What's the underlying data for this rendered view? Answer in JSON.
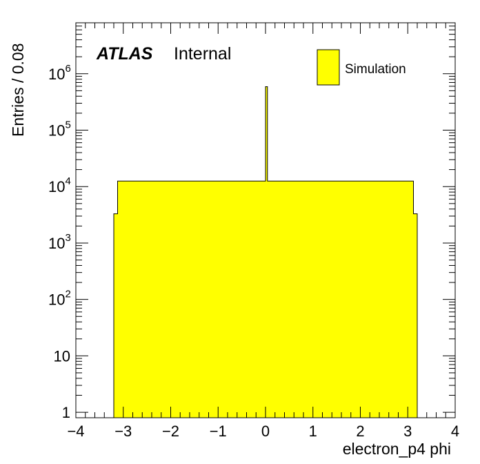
{
  "chart_data": {
    "type": "bar",
    "histogram": true,
    "xlabel": "electron_p4 phi",
    "ylabel": "Entries / 0.08",
    "xlim": [
      -4,
      4
    ],
    "ylim": [
      0.8,
      8000000
    ],
    "yscale": "log",
    "bin_width": 0.08,
    "x_ticks": [
      -4,
      -3,
      -2,
      -1,
      0,
      1,
      2,
      3,
      4
    ],
    "x_tick_labels": [
      "−4",
      "−3",
      "−2",
      "−1",
      "0",
      "1",
      "2",
      "3",
      "4"
    ],
    "y_ticks": [
      {
        "value": 1,
        "base": "1",
        "exp": ""
      },
      {
        "value": 10,
        "base": "10",
        "exp": ""
      },
      {
        "value": 100,
        "base": "10",
        "exp": "2"
      },
      {
        "value": 1000,
        "base": "10",
        "exp": "3"
      },
      {
        "value": 10000,
        "base": "10",
        "exp": "4"
      },
      {
        "value": 100000,
        "base": "10",
        "exp": "5"
      },
      {
        "value": 1000000,
        "base": "10",
        "exp": "6"
      }
    ],
    "annotation": {
      "bold": "ATLAS",
      "text": "Internal"
    },
    "legend": {
      "position": "top-right",
      "entries": [
        {
          "label": "Simulation",
          "color": "#ffff00"
        }
      ]
    },
    "series": [
      {
        "name": "Simulation",
        "color": "#ffff00",
        "edge_color": "#000000"
      }
    ],
    "bins": [
      {
        "x0": -3.2,
        "x1": -3.12,
        "value": 3300
      },
      {
        "x0": -3.12,
        "x1": -3.12,
        "value": 13000,
        "note": "plateau start"
      },
      {
        "x0": -3.12,
        "x1": 0.0,
        "value": 12500
      },
      {
        "x0": 0.0,
        "x1": 0.04,
        "value": 590000
      },
      {
        "x0": 0.04,
        "x1": 3.12,
        "value": 12500
      },
      {
        "x0": 3.12,
        "x1": 3.2,
        "value": 3300
      }
    ],
    "plateau": {
      "x0": -3.12,
      "x1": 3.12,
      "value": 12500
    },
    "edge_bins": [
      {
        "x0": -3.2,
        "x1": -3.12,
        "value": 3300
      },
      {
        "x0": 3.12,
        "x1": 3.2,
        "value": 3300
      }
    ],
    "spike": {
      "x0": 0.0,
      "x1": 0.04,
      "value": 590000
    },
    "grid": false
  }
}
